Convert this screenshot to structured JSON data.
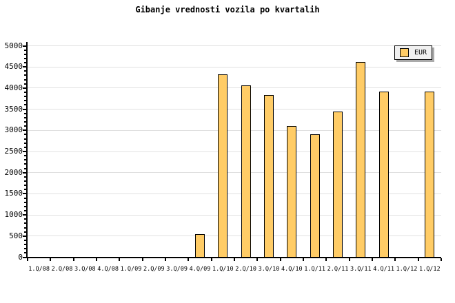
{
  "chart_data": {
    "type": "bar",
    "title": "Gibanje vrednosti vozila po kvartalih",
    "categories": [
      "1.Q/08",
      "2.Q/08",
      "3.Q/08",
      "4.Q/08",
      "1.Q/09",
      "2.Q/09",
      "3.Q/09",
      "4.Q/09",
      "1.Q/10",
      "2.Q/10",
      "3.Q/10",
      "4.Q/10",
      "1.Q/11",
      "2.Q/11",
      "3.Q/11",
      "4.Q/11",
      "1.Q/12",
      "1.Q/12"
    ],
    "series": [
      {
        "name": "EUR",
        "color": "#FFCC66",
        "values": [
          null,
          null,
          null,
          null,
          null,
          null,
          null,
          550,
          4330,
          4070,
          3840,
          3110,
          2900,
          3450,
          4620,
          3920,
          null,
          3920
        ]
      }
    ],
    "ylim": [
      0,
      5000
    ],
    "y_major_step": 500,
    "y_minor_step": 100,
    "xlabel": "",
    "ylabel": "",
    "grid": "horizontal-major",
    "legend_position": "top-right",
    "colors": {
      "bar_fill": "#FFCC66",
      "bar_border": "#000000",
      "gridline": "#E0E0E0",
      "axis": "#000000",
      "legend_bg": "#F0F0F0",
      "legend_border": "#000000",
      "legend_shadow": "#AAAAAA",
      "background": "#FFFFFF",
      "text": "#000000"
    }
  }
}
